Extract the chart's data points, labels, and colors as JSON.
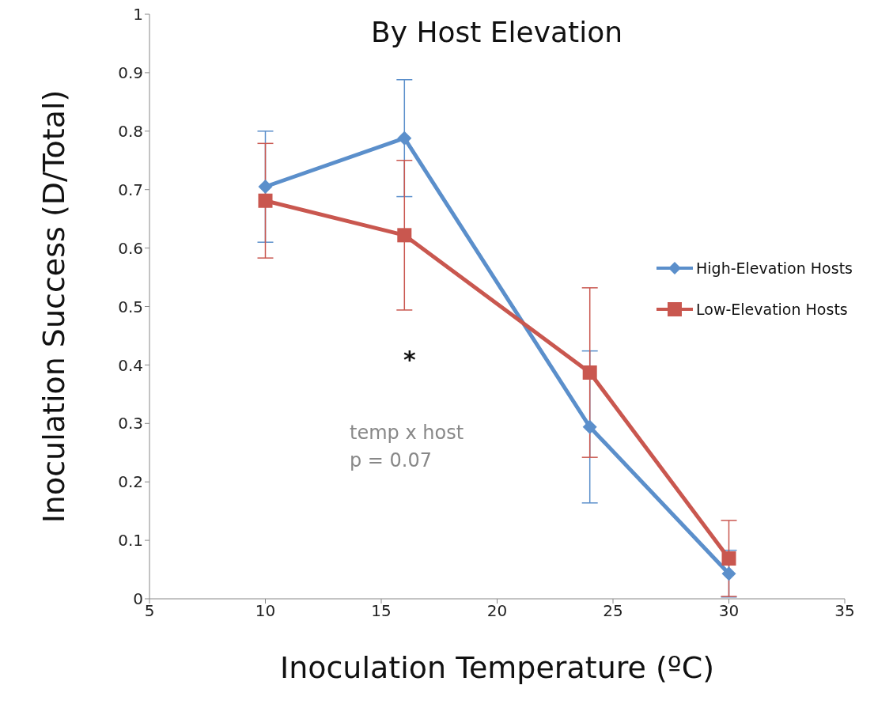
{
  "chart_data": {
    "type": "line",
    "title": "By Host Elevation",
    "xlabel": "Inoculation Temperature (ºC)",
    "ylabel": "Inoculation Success (D/Total)",
    "x": [
      10,
      16,
      24,
      30
    ],
    "series": [
      {
        "name": "High-Elevation Hosts",
        "color": "#5b8fcb",
        "marker": "diamond",
        "values": [
          0.705,
          0.788,
          0.294,
          0.043
        ],
        "errors": [
          0.095,
          0.1,
          0.13,
          0.04
        ]
      },
      {
        "name": "Low-Elevation Hosts",
        "color": "#c9574f",
        "marker": "square",
        "values": [
          0.681,
          0.622,
          0.387,
          0.069
        ],
        "errors": [
          0.098,
          0.128,
          0.145,
          0.065
        ]
      }
    ],
    "xlim": [
      5,
      35
    ],
    "xticks": [
      5,
      10,
      15,
      20,
      25,
      30,
      35
    ],
    "ylim": [
      0,
      1
    ],
    "yticks": [
      0,
      0.1,
      0.2,
      0.3,
      0.4,
      0.5,
      0.6,
      0.7,
      0.8,
      0.9,
      1
    ],
    "grid": false,
    "legend": "right",
    "line_style": "solid",
    "annotations": [
      "*",
      "temp x host",
      "p = 0.07"
    ]
  }
}
